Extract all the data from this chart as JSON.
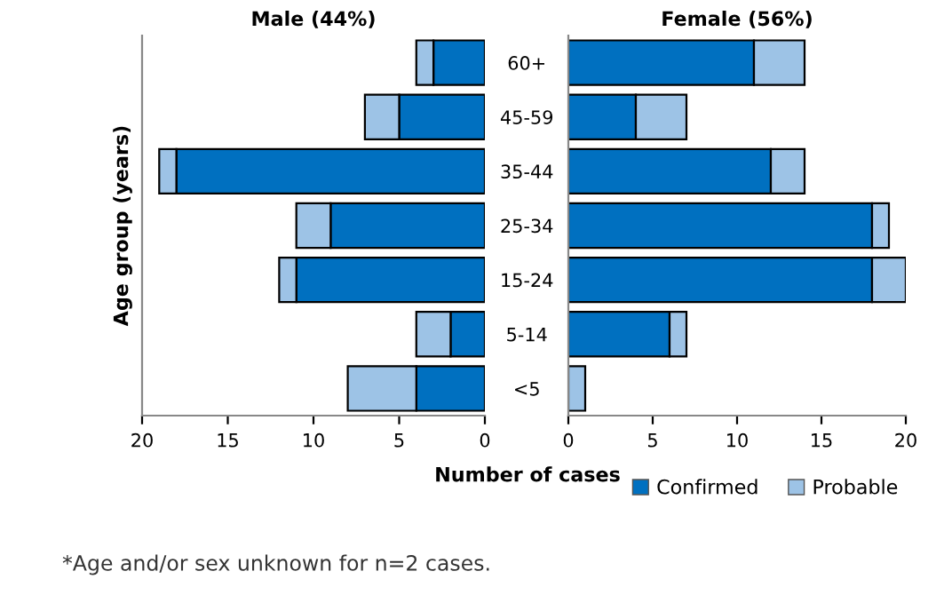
{
  "chart_data": [
    {
      "type": "bar",
      "orientation": "horizontal",
      "stacked": true,
      "title": "Male (44%)",
      "ylabel": "Age group (years)",
      "categories": [
        "60+",
        "45-59",
        "35-44",
        "25-34",
        "15-24",
        "5-14",
        "<5"
      ],
      "series": [
        {
          "color": "#0070c0",
          "values": [
            3,
            5,
            18,
            9,
            11,
            2,
            4
          ]
        },
        {
          "color": "#9dc3e6",
          "values": [
            1,
            2,
            1,
            2,
            1,
            2,
            4
          ]
        }
      ],
      "xlim": [
        20,
        0
      ],
      "xticks": [
        20,
        15,
        10,
        5,
        0
      ],
      "grid": false,
      "legend": false,
      "annotations": [
        "*Age and/or sex unknown for n=2 cases."
      ]
    },
    {
      "type": "bar",
      "orientation": "horizontal",
      "stacked": true,
      "title": "Female (56%)",
      "xlabel": "Number of cases",
      "categories": [
        null,
        null,
        null,
        null,
        null,
        null,
        null
      ],
      "series": [
        {
          "name": "Confirmed",
          "color": "#0070c0",
          "values": [
            11,
            4,
            12,
            18,
            18,
            6,
            0
          ]
        },
        {
          "name": "Probable",
          "color": "#9dc3e6",
          "values": [
            3,
            3,
            2,
            1,
            2,
            1,
            1
          ]
        }
      ],
      "xlim": [
        0,
        20
      ],
      "xticks": [
        0,
        5,
        10,
        15,
        20
      ],
      "tick_labels": "x",
      "grid": false,
      "legend": "bottom right"
    }
  ]
}
